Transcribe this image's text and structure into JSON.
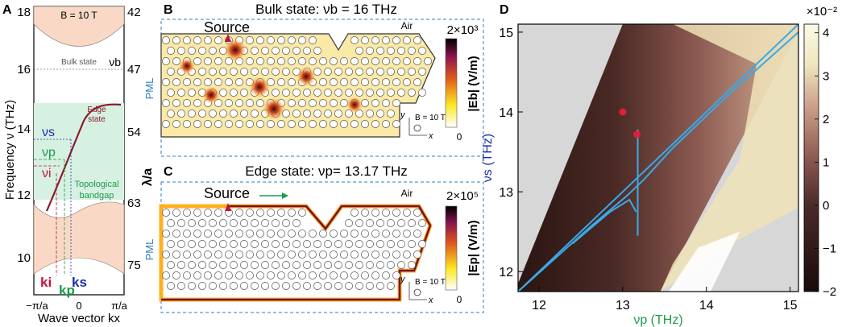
{
  "panel_a": {
    "letter": "A",
    "field_label": "B = 10 T",
    "left_ticks": [
      "18",
      "16",
      "14",
      "12",
      "10"
    ],
    "right_ticks": [
      "42",
      "47",
      "54",
      "63",
      "75"
    ],
    "ylabel_left": "Frequency ν (THz)",
    "ylabel_right": "λ/a",
    "xlabel": "Wave vector kx",
    "x_ticks": [
      "−π/a",
      "0",
      "π/a"
    ],
    "bulk_label": "Bulk state",
    "nu_b": "νb",
    "edge_label_1": "Edge",
    "edge_label_2": "state",
    "topo_label_1": "Topological",
    "topo_label_2": "bandgap",
    "nu_s": "νs",
    "nu_p": "νp",
    "nu_i": "νi",
    "k_i": "ki",
    "k_p": "kp",
    "k_s": "ks"
  },
  "panel_b": {
    "letter": "B",
    "title": "Bulk state: νb = 16 THz",
    "source": "Source",
    "air": "Air",
    "pml": "PML",
    "field": "B = 10 T",
    "cb_max": "2×10³",
    "cb_min": "0",
    "cb_label": "|Eb| (V/m)",
    "axis_x": "x",
    "axis_y": "y"
  },
  "panel_c": {
    "letter": "C",
    "title": "Edge state: νp= 13.17 THz",
    "source": "Source",
    "air": "Air",
    "pml": "PML",
    "field": "B = 10 T",
    "cb_max": "2×10⁵",
    "cb_min": "0",
    "cb_label": "|Ep| (V/m)",
    "axis_x": "x",
    "axis_y": "y"
  },
  "chart_data": {
    "type": "heatmap",
    "panel": "D",
    "xlabel": "νp (THz)",
    "ylabel": "νs (THz)",
    "x_ticks": [
      12,
      13,
      14,
      15
    ],
    "y_ticks": [
      12,
      13,
      14,
      15
    ],
    "xlim": [
      11.75,
      15.1
    ],
    "ylim": [
      11.75,
      15.1
    ],
    "colorbar_ticks": [
      4,
      3,
      2,
      1,
      0,
      -1,
      -2
    ],
    "colorbar_range": [
      -2,
      4.2
    ],
    "colorbar_scale": "×10⁻²",
    "markers": [
      {
        "x": 13.0,
        "y": 14.0
      },
      {
        "x": 13.17,
        "y": 13.72
      }
    ],
    "curves": {
      "diagonal": [
        [
          11.75,
          11.75
        ],
        [
          15.1,
          15.1
        ]
      ],
      "upper_branch": [
        [
          11.75,
          11.75
        ],
        [
          12.6,
          12.55
        ],
        [
          13.05,
          12.95
        ],
        [
          13.15,
          13.05
        ],
        [
          13.25,
          13.15
        ],
        [
          13.6,
          13.55
        ],
        [
          14.3,
          14.25
        ],
        [
          15.1,
          15.0
        ]
      ],
      "lower_branch": [
        [
          12.4,
          12.35
        ],
        [
          12.85,
          12.75
        ],
        [
          13.08,
          12.9
        ],
        [
          13.16,
          12.75
        ]
      ],
      "vertical": [
        [
          13.18,
          12.45
        ],
        [
          13.18,
          13.78
        ]
      ]
    }
  }
}
